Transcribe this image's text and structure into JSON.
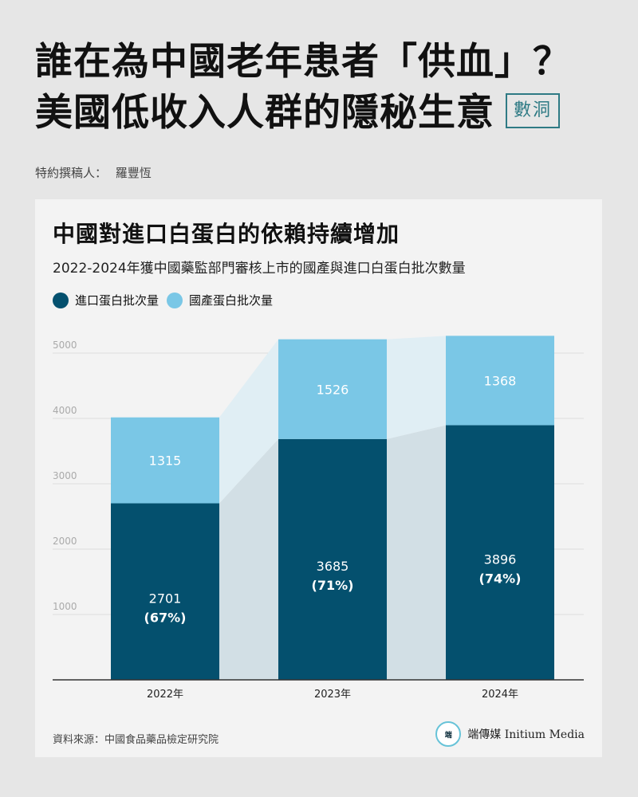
{
  "header": {
    "headline_line1": "誰在為中國老年患者「供血」？",
    "headline_line2": "美國低收入人群的隱秘生意",
    "tag": "數洞",
    "byline_label": "特約撰稿人：",
    "byline_name": "羅豐恆"
  },
  "chart_data": {
    "type": "bar",
    "stacked": true,
    "title": "中國對進口白蛋白的依賴持續增加",
    "subtitle": "2022-2024年獲中國藥監部門審核上市的國產與進口白蛋白批次數量",
    "categories": [
      "2022年",
      "2023年",
      "2024年"
    ],
    "series": [
      {
        "name": "進口蛋白批次量",
        "color": "#04506e",
        "values": [
          2701,
          3685,
          3896
        ],
        "percent_labels": [
          "(67%)",
          "(71%)",
          "(74%)"
        ]
      },
      {
        "name": "國產蛋白批次量",
        "color": "#7ac7e6",
        "values": [
          1315,
          1526,
          1368
        ]
      }
    ],
    "yticks": [
      "1000",
      "2000",
      "3000",
      "4000",
      "5000"
    ],
    "ylim": [
      0,
      5000
    ],
    "grid": true,
    "legend_position": "top-left",
    "connector_colors": {
      "imported": "#d2dfe5",
      "domestic": "#e0eef4"
    }
  },
  "footer": {
    "source": "資料來源：中國食品藥品檢定研究院",
    "brand_mark": "端",
    "brand": "端傳媒 Initium Media"
  }
}
